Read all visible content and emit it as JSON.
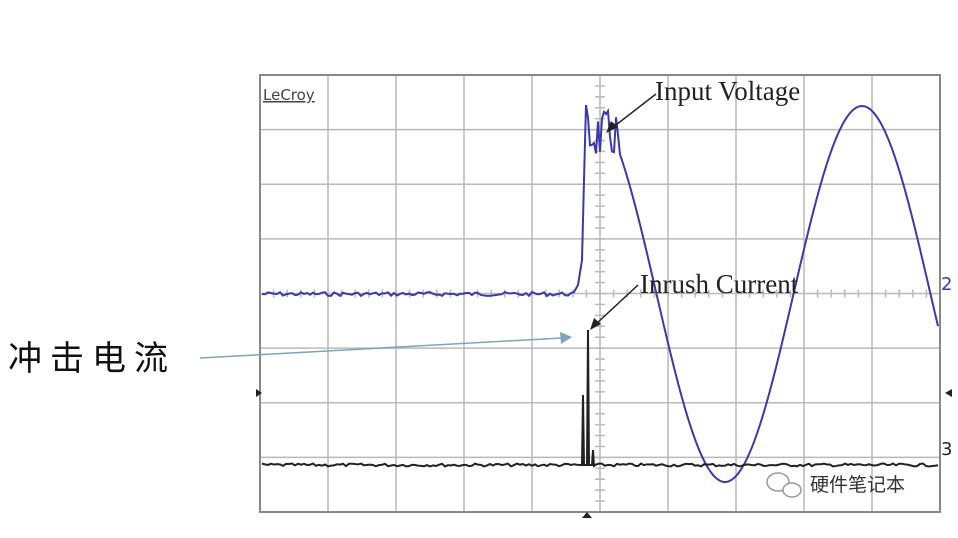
{
  "brand": "LeCroy",
  "annotations": {
    "voltage": "Input Voltage",
    "current": "Inrush Current",
    "chinese": "冲击电流"
  },
  "channels": {
    "ch2": "2",
    "ch3": "3"
  },
  "watermark": "硬件笔记本"
}
